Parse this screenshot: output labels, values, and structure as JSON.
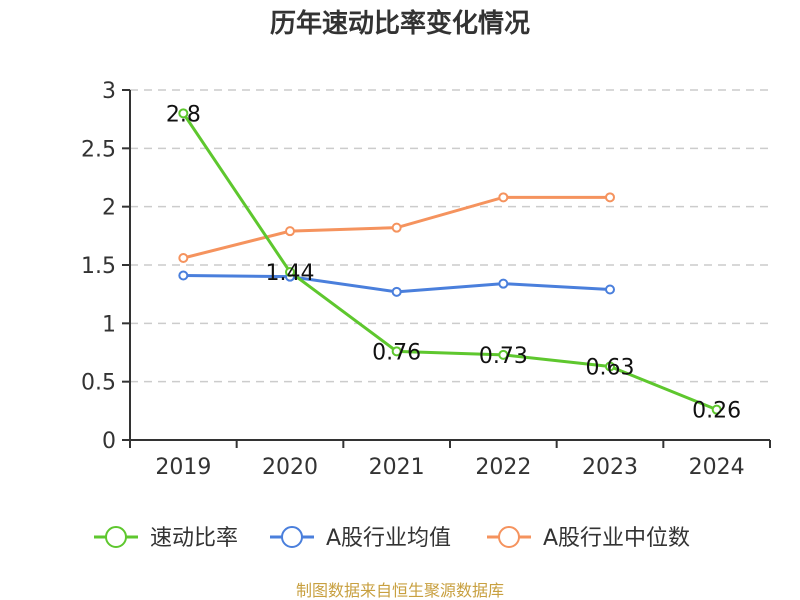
{
  "chart_data": {
    "type": "line",
    "title": "历年速动比率变化情况",
    "categories": [
      "2019",
      "2020",
      "2021",
      "2022",
      "2023",
      "2024"
    ],
    "ylim": [
      0,
      3
    ],
    "yticks": [
      "0",
      "0.5",
      "1",
      "1.5",
      "2",
      "2.5",
      "3"
    ],
    "grid": true,
    "legend_position": "bottom",
    "series": [
      {
        "name": "速动比率",
        "color": "#5ec72e",
        "values": [
          2.8,
          1.44,
          0.76,
          0.73,
          0.63,
          0.26
        ],
        "labels": [
          "2.8",
          "1.44",
          "0.76",
          "0.73",
          "0.63",
          "0.26"
        ]
      },
      {
        "name": "A股行业均值",
        "color": "#4a7fdc",
        "values": [
          1.41,
          1.4,
          1.27,
          1.34,
          1.29,
          null
        ],
        "labels": []
      },
      {
        "name": "A股行业中位数",
        "color": "#f5935e",
        "values": [
          1.56,
          1.79,
          1.82,
          2.08,
          2.08,
          null
        ],
        "labels": []
      }
    ]
  },
  "footer": {
    "source": "制图数据来自恒生聚源数据库"
  }
}
